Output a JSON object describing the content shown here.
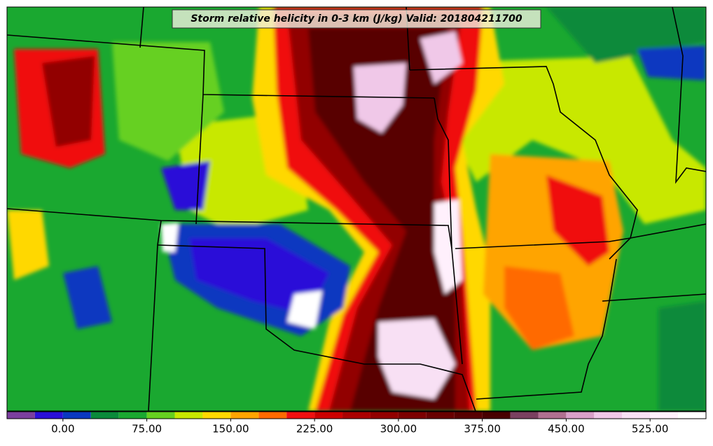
{
  "title": "Storm relative helicity in 0-3 km (J/kg) Valid: 201804211700",
  "colorbar": {
    "bounds": [
      -50,
      -25,
      0,
      25,
      50,
      75,
      100,
      125,
      150,
      175,
      200,
      225,
      250,
      275,
      300,
      325,
      350,
      375,
      400,
      425,
      450,
      475,
      500,
      525,
      550,
      575
    ],
    "colors": [
      "#7b3f9e",
      "#2a10d8",
      "#0a38c0",
      "#0a8a3a",
      "#1aa830",
      "#66d020",
      "#c8e800",
      "#ffd800",
      "#ffa400",
      "#ff6a00",
      "#f01010",
      "#cc0000",
      "#aa0000",
      "#920000",
      "#7c0000",
      "#680000",
      "#580000",
      "#480000",
      "#7a4060",
      "#b07090",
      "#d8a0c8",
      "#f0c8e8",
      "#f8e0f4",
      "#fff0fc",
      "#ffffff"
    ],
    "ticks": [
      {
        "value": 0,
        "label": "0.00"
      },
      {
        "value": 75,
        "label": "75.00"
      },
      {
        "value": 150,
        "label": "150.00"
      },
      {
        "value": 225,
        "label": "225.00"
      },
      {
        "value": 300,
        "label": "300.00"
      },
      {
        "value": 375,
        "label": "375.00"
      },
      {
        "value": 450,
        "label": "450.00"
      },
      {
        "value": 525,
        "label": "525.00"
      }
    ]
  }
}
